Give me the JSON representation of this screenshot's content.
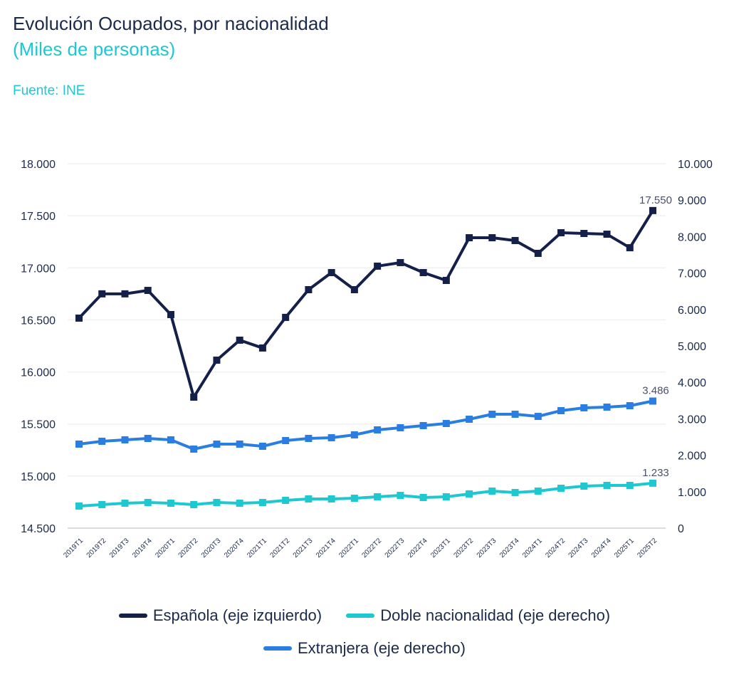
{
  "header": {
    "title": "Evolución Ocupados, por nacionalidad",
    "subtitle": "(Miles de personas)",
    "source": "Fuente: INE"
  },
  "chart_data": {
    "type": "line",
    "title": "Evolución Ocupados, por nacionalidad",
    "subtitle": "(Miles de personas)",
    "categories": [
      "2019T1",
      "2019T2",
      "2019T3",
      "2019T4",
      "2020T1",
      "2020T2",
      "2020T3",
      "2020T4",
      "2021T1",
      "2021T2",
      "2021T3",
      "2021T4",
      "2022T1",
      "2022T2",
      "2022T3",
      "2022T4",
      "2023T1",
      "2023T2",
      "2023T3",
      "2023T4",
      "2024T1",
      "2024T2",
      "2024T3",
      "2024T4",
      "2025T1",
      "2025T2"
    ],
    "y_left": {
      "range": [
        14500,
        18000
      ],
      "ticks": [
        "14.500",
        "15.000",
        "15.500",
        "16.000",
        "16.500",
        "17.000",
        "17.500",
        "18.000"
      ]
    },
    "y_right": {
      "range": [
        0,
        10000
      ],
      "ticks": [
        "0",
        "1.000",
        "2.000",
        "3.000",
        "4.000",
        "5.000",
        "6.000",
        "7.000",
        "8.000",
        "9.000",
        "10.000"
      ]
    },
    "grid": true,
    "legend_position": "bottom",
    "series": [
      {
        "name": "Española (eje izquierdo)",
        "axis": "left",
        "color": "#14204a",
        "marker": "square",
        "values": [
          16517,
          16750,
          16750,
          16783,
          16551,
          15758,
          16113,
          16305,
          16230,
          16524,
          16790,
          16954,
          16790,
          17016,
          17050,
          16954,
          16879,
          17289,
          17289,
          17262,
          17139,
          17337,
          17330,
          17323,
          17193,
          17550
        ],
        "end_label": "17.550"
      },
      {
        "name": "Doble nacionalidad (eje derecho)",
        "axis": "right",
        "color": "#1ec8d0",
        "marker": "square",
        "values": [
          605,
          645,
          684,
          703,
          684,
          645,
          703,
          684,
          703,
          762,
          801,
          801,
          820,
          859,
          898,
          840,
          859,
          938,
          1016,
          977,
          1016,
          1094,
          1152,
          1172,
          1172,
          1233
        ],
        "end_label": "1.233"
      },
      {
        "name": "Extranjera (eje derecho)",
        "axis": "right",
        "color": "#2a7de1",
        "marker": "square",
        "values": [
          2305,
          2383,
          2422,
          2461,
          2422,
          2168,
          2305,
          2305,
          2246,
          2402,
          2461,
          2480,
          2559,
          2695,
          2754,
          2813,
          2871,
          2988,
          3125,
          3125,
          3066,
          3223,
          3301,
          3320,
          3359,
          3486
        ],
        "end_label": "3.486"
      }
    ]
  }
}
